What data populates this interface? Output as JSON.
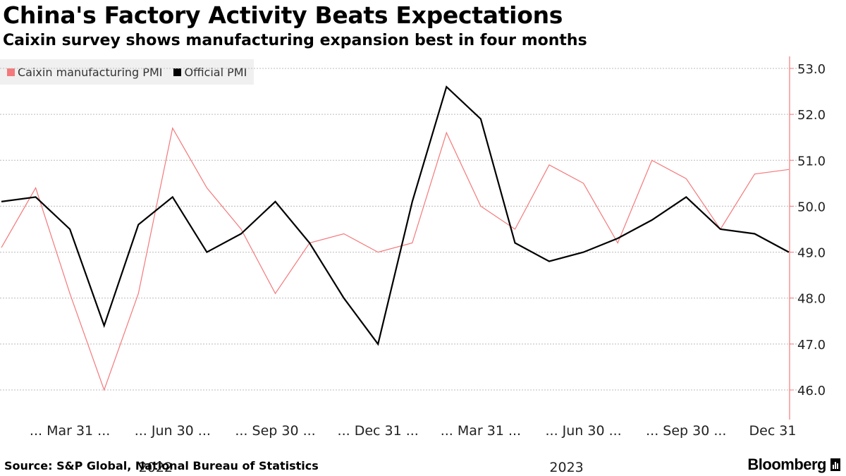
{
  "title": "China's Factory Activity Beats Expectations",
  "subtitle": "Caixin survey shows manufacturing expansion best in four months",
  "source": "Source: S&P Global, National Bureau of Statistics",
  "brand": "Bloomberg",
  "colors": {
    "caixin": "#f4797b",
    "official": "#000000",
    "axis": "#f4797b",
    "grid": "#bbbbbb"
  },
  "chart_data": {
    "type": "line",
    "x": [
      "2022-01-31",
      "2022-02-28",
      "2022-03-31",
      "2022-04-30",
      "2022-05-31",
      "2022-06-30",
      "2022-07-31",
      "2022-08-31",
      "2022-09-30",
      "2022-10-31",
      "2022-11-30",
      "2022-12-31",
      "2023-01-31",
      "2023-02-28",
      "2023-03-31",
      "2023-04-30",
      "2023-05-31",
      "2023-06-30",
      "2023-07-31",
      "2023-08-31",
      "2023-09-30",
      "2023-10-31",
      "2023-11-30",
      "2023-12-31"
    ],
    "series": [
      {
        "name": "Caixin manufacturing PMI",
        "color": "#f4797b",
        "values": [
          49.1,
          50.4,
          48.1,
          46.0,
          48.1,
          51.7,
          50.4,
          49.5,
          48.1,
          49.2,
          49.4,
          49.0,
          49.2,
          51.6,
          50.0,
          49.5,
          50.9,
          50.5,
          49.2,
          51.0,
          50.6,
          49.5,
          50.7,
          50.8
        ]
      },
      {
        "name": "Official PMI",
        "color": "#000000",
        "values": [
          50.1,
          50.2,
          49.5,
          47.4,
          49.6,
          50.2,
          49.0,
          49.4,
          50.1,
          49.2,
          48.0,
          47.0,
          50.1,
          52.6,
          51.9,
          49.2,
          48.8,
          49.0,
          49.3,
          49.7,
          50.2,
          49.5,
          49.4,
          49.0
        ]
      }
    ],
    "y_axis": {
      "side": "right",
      "ticks": [
        "53.0",
        "52.0",
        "51.0",
        "50.0",
        "49.0",
        "48.0",
        "47.0",
        "46.0"
      ]
    },
    "x_ticks": [
      {
        "label": "... Mar 31 ...",
        "index": 2
      },
      {
        "label": "... Jun 30 ...",
        "index": 5
      },
      {
        "label": "... Sep 30 ...",
        "index": 8
      },
      {
        "label": "... Dec 31 ...",
        "index": 11
      },
      {
        "label": "... Mar 31 ...",
        "index": 14
      },
      {
        "label": "... Jun 30 ...",
        "index": 17
      },
      {
        "label": "... Sep 30 ...",
        "index": 20
      },
      {
        "label": "Dec 31",
        "index": 23
      }
    ],
    "year_labels": [
      {
        "label": "2022",
        "index": 5
      },
      {
        "label": "2023",
        "index": 17
      }
    ],
    "grid": true,
    "legend_position": "top-left"
  }
}
